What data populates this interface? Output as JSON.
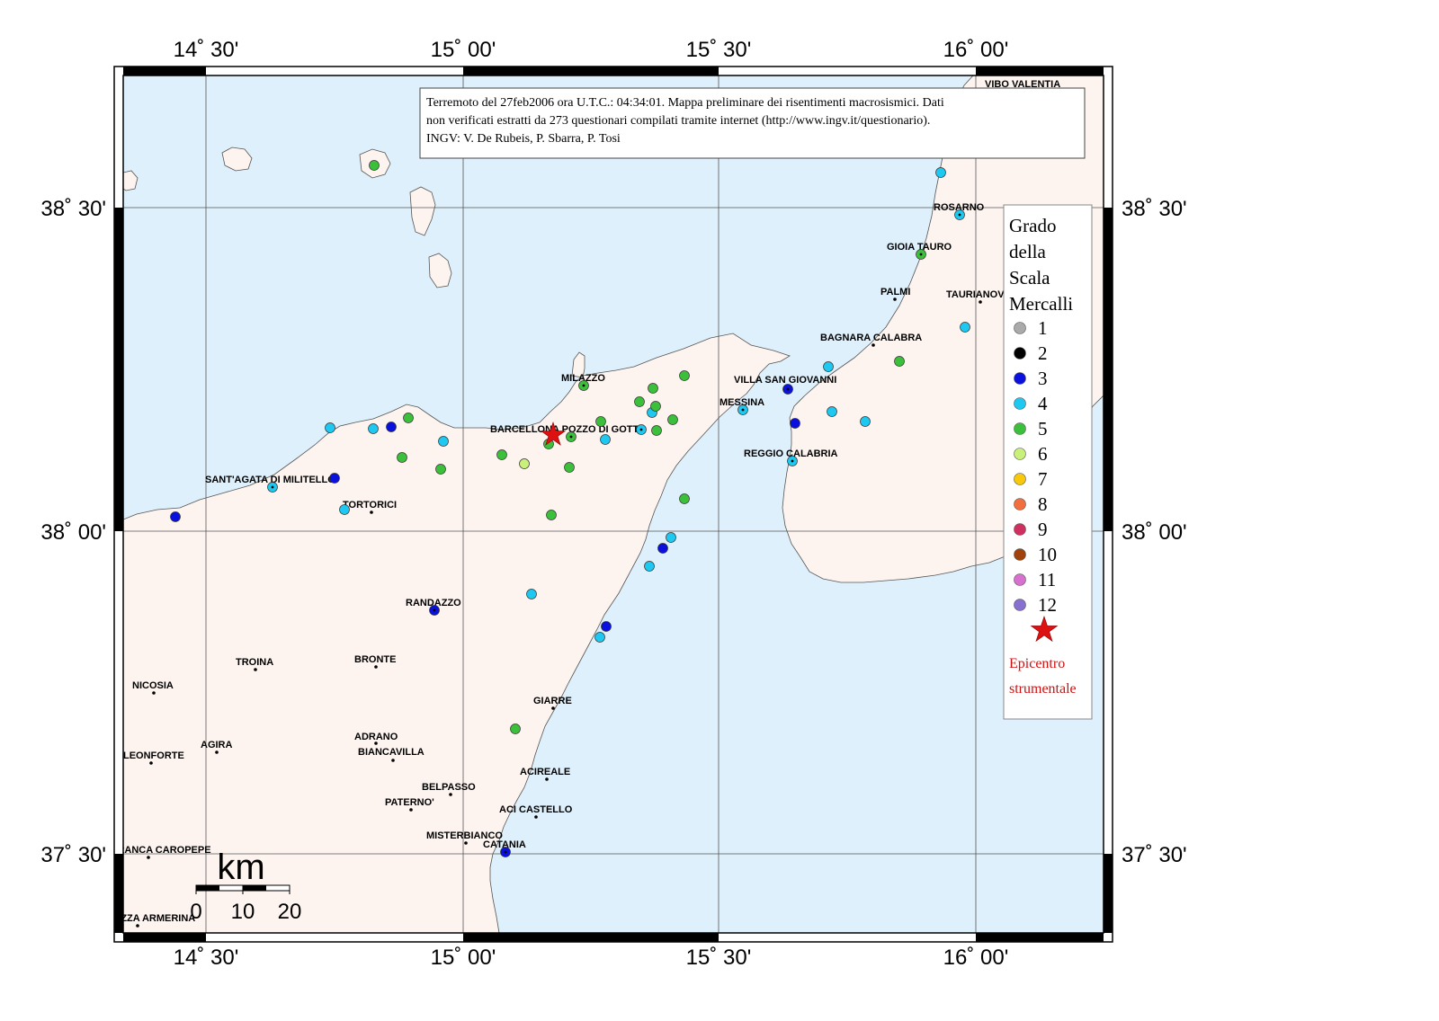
{
  "map": {
    "note_lines": [
      "Terremoto del 27feb2006 ora U.T.C.: 04:34:01.  Mappa preliminare dei risentimenti macrosismici.  Dati",
      "non verificati estratti da 273 questionari compilati tramite internet (http://www.ingv.it/questionario).",
      "INGV: V.  De Rubeis, P.  Sbarra, P.  Tosi"
    ],
    "lon_labels": [
      "14˚ 30'",
      "15˚ 00'",
      "15˚ 30'",
      "16˚ 00'"
    ],
    "lat_labels": [
      "38˚ 30'",
      "38˚ 00'",
      "37˚ 30'"
    ],
    "colors": {
      "sea": "#def0fb",
      "land": "#fdf4f0",
      "coast": "#555555",
      "epicenter": "#dd1111"
    },
    "scale_bar": {
      "unit": "km",
      "ticks": [
        "0",
        "10",
        "20"
      ]
    },
    "legend": {
      "title_lines": [
        "Grado",
        "della",
        "Scala",
        "Mercalli"
      ],
      "items": [
        {
          "label": "1",
          "color": "#aaaaaa"
        },
        {
          "label": "2",
          "color": "#000000"
        },
        {
          "label": "3",
          "color": "#0a10dd"
        },
        {
          "label": "4",
          "color": "#1ec8f0"
        },
        {
          "label": "5",
          "color": "#3cc03c"
        },
        {
          "label": "6",
          "color": "#c8f07a"
        },
        {
          "label": "7",
          "color": "#f7c80c"
        },
        {
          "label": "8",
          "color": "#f26e3c"
        },
        {
          "label": "9",
          "color": "#d03060"
        },
        {
          "label": "10",
          "color": "#a0420c"
        },
        {
          "label": "11",
          "color": "#d870d0"
        },
        {
          "label": "12",
          "color": "#8870d0"
        }
      ],
      "epicenter_lines": [
        "Epicentro",
        "strumentale"
      ]
    },
    "towns": [
      "VIBO VALENTIA",
      "ROSARNO",
      "GIOIA TAURO",
      "PALMI",
      "TAURIANOVA",
      "BAGNARA CALABRA",
      "VILLA SAN GIOVANNI",
      "MESSINA",
      "REGGIO CALABRIA",
      "MILAZZO",
      "BARCELLONA POZZO DI GOTTO",
      "SANT'AGATA DI MILITELLO",
      "TORTORICI",
      "RANDAZZO",
      "TROINA",
      "BRONTE",
      "NICOSIA",
      "AGIRA",
      "LEONFORTE",
      "ADRANO",
      "BIANCAVILLA",
      "GIARRE",
      "ACIREALE",
      "BELPASSO",
      "PATERNO'",
      "ACI CASTELLO",
      "MISTERBIANCO",
      "CATANIA",
      "BARRAFRANCA CAROPEPE",
      "PIAZZA ARMERINA"
    ]
  }
}
